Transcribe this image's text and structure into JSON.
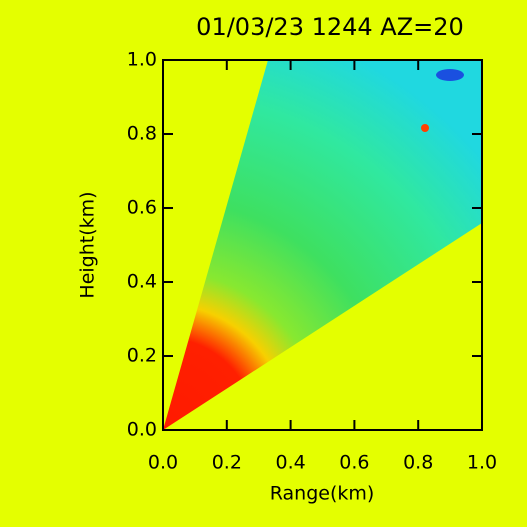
{
  "chart_data": {
    "type": "rhi",
    "title": "01/03/23 1244 AZ=20",
    "x_label": "Range(km)",
    "y_label": "Height(km)",
    "xlim": [
      0,
      1
    ],
    "ylim": [
      0,
      1
    ],
    "xticks": [
      {
        "value": 0,
        "label": "0.0"
      },
      0.2,
      0.4,
      0.6,
      0.8,
      {
        "value": 1,
        "label": "1.0"
      }
    ],
    "yticks": [
      {
        "value": 0,
        "label": "0.0"
      },
      0.2,
      0.4,
      0.6,
      0.8,
      {
        "value": 1,
        "label": "1.0"
      }
    ]
  }
}
